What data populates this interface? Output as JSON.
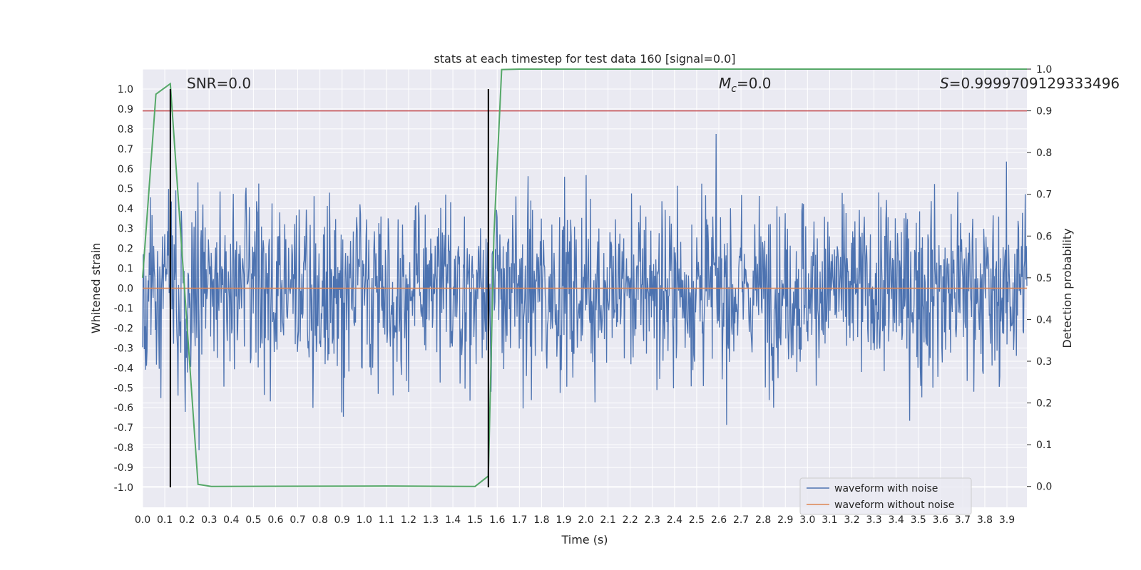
{
  "chart_data": {
    "type": "line",
    "title": "stats at each timestep for test data 160 [signal=0.0]",
    "xlabel": "Time (s)",
    "ylabel": "Whitened strain",
    "y2label": "Detection probability",
    "xlim": [
      0.0,
      3.99
    ],
    "ylim": [
      -1.1,
      1.1
    ],
    "y2lim": [
      -0.05,
      1.0
    ],
    "x_ticks": [
      "0.0",
      "0.1",
      "0.2",
      "0.3",
      "0.4",
      "0.5",
      "0.6",
      "0.7",
      "0.8",
      "0.9",
      "1.0",
      "1.1",
      "1.2",
      "1.3",
      "1.4",
      "1.5",
      "1.6",
      "1.7",
      "1.8",
      "1.9",
      "2.0",
      "2.1",
      "2.2",
      "2.3",
      "2.4",
      "2.5",
      "2.6",
      "2.7",
      "2.8",
      "2.9",
      "3.0",
      "3.1",
      "3.2",
      "3.3",
      "3.4",
      "3.5",
      "3.6",
      "3.7",
      "3.8",
      "3.9"
    ],
    "y_ticks": [
      "1.0",
      "0.9",
      "0.8",
      "0.7",
      "0.6",
      "0.5",
      "0.4",
      "0.3",
      "0.2",
      "0.1",
      "0.0",
      "-0.1",
      "-0.2",
      "-0.3",
      "-0.4",
      "-0.5",
      "-0.6",
      "-0.7",
      "-0.8",
      "-0.9",
      "-1.0"
    ],
    "y2_ticks": [
      "1.0",
      "0.9",
      "0.8",
      "0.7",
      "0.6",
      "0.5",
      "0.4",
      "0.3",
      "0.2",
      "0.1",
      "0.0"
    ],
    "annotations": {
      "snr": "SNR=0.0",
      "mc_symbol": "M",
      "mc_sub": "c",
      "mc_value": "=0.0",
      "s_symbol": "S",
      "s_value": "=0.9999709129333496"
    },
    "series": [
      {
        "name": "waveform with noise",
        "color": "#4c72b0",
        "description": "noise-dominated strain, roughly within -0.6 to 0.6 with spikes to ±1.0",
        "samples": 1600,
        "amplitude": 0.22,
        "seed": 160
      },
      {
        "name": "waveform without noise",
        "color": "#dd8452",
        "values": "zero over full duration",
        "constant": 0.0
      }
    ],
    "detection_probability": {
      "color": "#55a868",
      "x": [
        0.0,
        0.06,
        0.125,
        0.17,
        0.25,
        0.31,
        1.1,
        1.5,
        1.56,
        1.585,
        1.62,
        1.7,
        3.99
      ],
      "y": [
        0.5,
        0.94,
        0.965,
        0.62,
        0.005,
        0.0,
        0.001,
        0.0,
        0.025,
        0.6,
        0.999,
        1.0,
        1.0
      ]
    },
    "threshold": {
      "value": 0.9,
      "axis": "secondary",
      "color": "#c44e52"
    },
    "vertical_markers": {
      "x": [
        0.125,
        1.56
      ],
      "color": "#000000"
    },
    "legend": {
      "position": "bottom-right",
      "entries": [
        "waveform with noise",
        "waveform without noise"
      ]
    }
  }
}
